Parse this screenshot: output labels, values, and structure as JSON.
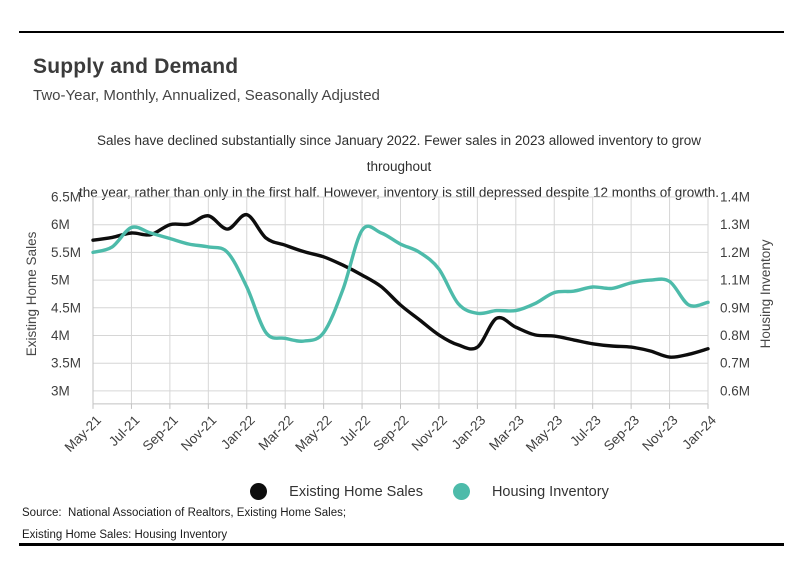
{
  "header": {
    "title": "Supply and Demand",
    "subtitle": "Two-Year, Monthly, Annualized, Seasonally Adjusted"
  },
  "description": {
    "line1": "Sales have declined substantially since January 2022. Fewer sales in 2023 allowed inventory to grow throughout",
    "line2": "the year, rather than only in the first half. However, inventory is still depressed despite 12 months of growth."
  },
  "chart_data": {
    "type": "line",
    "x": [
      "May-21",
      "Jun-21",
      "Jul-21",
      "Aug-21",
      "Sep-21",
      "Oct-21",
      "Nov-21",
      "Dec-21",
      "Jan-22",
      "Feb-22",
      "Mar-22",
      "Apr-22",
      "May-22",
      "Jun-22",
      "Jul-22",
      "Aug-22",
      "Sep-22",
      "Oct-22",
      "Nov-22",
      "Dec-22",
      "Jan-23",
      "Feb-23",
      "Mar-23",
      "Apr-23",
      "May-23",
      "Jun-23",
      "Jul-23",
      "Aug-23",
      "Sep-23",
      "Oct-23",
      "Nov-23",
      "Dec-23",
      "Jan-24"
    ],
    "x_tick_labels": [
      "May-21",
      "Jul-21",
      "Sep-21",
      "Nov-21",
      "Jan-22",
      "Mar-22",
      "May-22",
      "Jul-22",
      "Sep-22",
      "Nov-22",
      "Jan-23",
      "Mar-23",
      "May-23",
      "Jul-23",
      "Sep-23",
      "Nov-23",
      "Jan-24"
    ],
    "series": [
      {
        "name": "Existing Home Sales",
        "axis": "left",
        "color": "#0d0d0d",
        "values": [
          5.72,
          5.77,
          5.85,
          5.82,
          6.0,
          6.01,
          6.16,
          5.92,
          6.18,
          5.76,
          5.63,
          5.51,
          5.42,
          5.27,
          5.09,
          4.88,
          4.55,
          4.28,
          4.01,
          3.83,
          3.79,
          4.31,
          4.15,
          4.01,
          3.99,
          3.92,
          3.85,
          3.81,
          3.79,
          3.72,
          3.61,
          3.66,
          3.76
        ]
      },
      {
        "name": "Housing Inventory",
        "axis": "right",
        "color": "#4dbbaa",
        "values": [
          1.2,
          1.22,
          1.29,
          1.27,
          1.25,
          1.23,
          1.22,
          1.2,
          1.05,
          0.81,
          0.79,
          0.78,
          0.81,
          1.03,
          1.28,
          1.27,
          1.23,
          1.2,
          1.14,
          0.93,
          0.88,
          0.89,
          0.89,
          0.93,
          1.01,
          1.02,
          1.05,
          1.04,
          1.08,
          1.1,
          1.09,
          0.92,
          0.94
        ]
      }
    ],
    "left_axis": {
      "label": "Existing Home Sales",
      "tick_labels": [
        "6.5M",
        "6M",
        "5.5M",
        "5M",
        "4.5M",
        "4M",
        "3.5M",
        "3M"
      ],
      "tick_values": [
        6.5,
        6.0,
        5.5,
        5.0,
        4.5,
        4.0,
        3.5,
        3.0
      ],
      "range": [
        3.0,
        6.5
      ]
    },
    "right_axis": {
      "label": "Housing Inventory",
      "tick_labels": [
        "1.4M",
        "1.3M",
        "1.2M",
        "1.1M",
        "0.9M",
        "0.8M",
        "0.7M",
        "0.6M"
      ],
      "tick_values": [
        1.4,
        1.3,
        1.2,
        1.1,
        0.9,
        0.8,
        0.7,
        0.6
      ]
    },
    "grid": true,
    "legend_position": "bottom"
  },
  "legend": {
    "items": [
      {
        "label": "Existing Home Sales",
        "color": "#0d0d0d"
      },
      {
        "label": "Housing Inventory",
        "color": "#4dbbaa"
      }
    ]
  },
  "source": {
    "line1": "Source:  National Association of Realtors, Existing Home Sales;",
    "line2": "Existing Home Sales: Housing Inventory"
  },
  "colors": {
    "grid": "#d6d6d6",
    "spine": "#c2c2c2",
    "tick_text": "#3f3f3f",
    "axis_title_text": "#474747"
  }
}
